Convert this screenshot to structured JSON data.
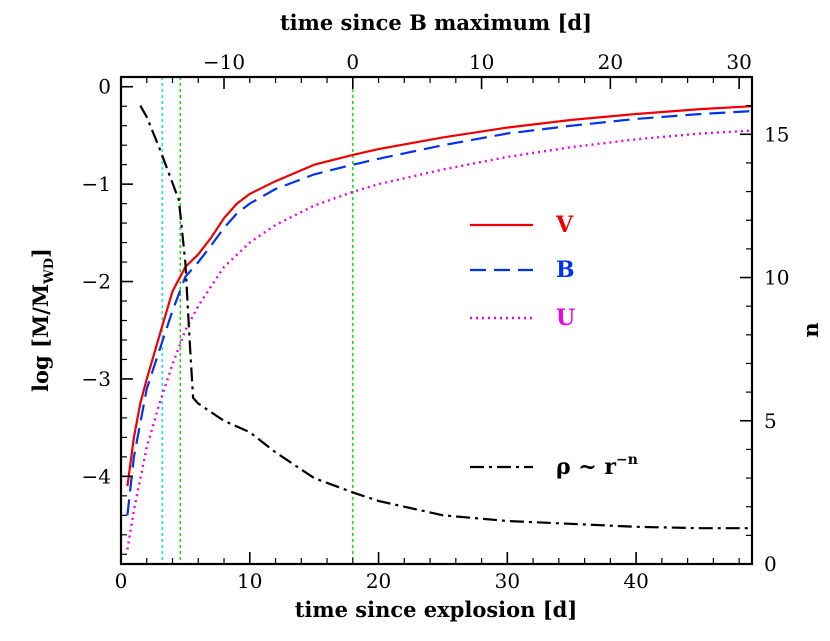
{
  "chart_data": {
    "type": "line",
    "title": "",
    "xlabel_bottom": "time since explosion [d]",
    "xlabel_top": "time since B maximum [d]",
    "ylabel_left_main": "log [M/M",
    "ylabel_left_sub": "WD",
    "ylabel_left_close": "]",
    "ylabel_right": "n",
    "xlim": [
      0,
      49
    ],
    "ylim": [
      -4.9,
      0.1
    ],
    "y2lim": [
      0,
      17
    ],
    "top_axis_offset": 18,
    "x_ticks": [
      0,
      10,
      20,
      30,
      40
    ],
    "x_tick_labels": [
      "0",
      "10",
      "20",
      "30",
      "40"
    ],
    "y_ticks": [
      -4,
      -3,
      -2,
      -1,
      0
    ],
    "y_tick_labels": [
      "−4",
      "−3",
      "−2",
      "−1",
      "0"
    ],
    "y2_ticks": [
      0,
      5,
      10,
      15
    ],
    "y2_tick_labels": [
      "0",
      "5",
      "10",
      "15"
    ],
    "top_ticks": [
      -10,
      0,
      10,
      20,
      30
    ],
    "top_tick_labels": [
      "−10",
      "0",
      "10",
      "20",
      "30"
    ],
    "vertical_lines": [
      {
        "x": 3.2,
        "color": "#00e5e5"
      },
      {
        "x": 4.6,
        "color": "#00dd00"
      },
      {
        "x": 18.0,
        "color": "#00dd00"
      }
    ],
    "series": [
      {
        "name": "V",
        "label": "V",
        "color": "#ee0000",
        "style": "solid",
        "axis": "left",
        "x": [
          0.5,
          1.0,
          1.5,
          2.0,
          3.0,
          4.0,
          5.0,
          6.0,
          7.0,
          8.0,
          9.0,
          10.0,
          12.0,
          15.0,
          18.0,
          20.0,
          25.0,
          30.0,
          35.0,
          40.0,
          45.0,
          49.0
        ],
        "y": [
          -4.1,
          -3.6,
          -3.25,
          -3.0,
          -2.55,
          -2.1,
          -1.85,
          -1.72,
          -1.55,
          -1.35,
          -1.2,
          -1.1,
          -0.97,
          -0.8,
          -0.7,
          -0.64,
          -0.52,
          -0.42,
          -0.34,
          -0.28,
          -0.23,
          -0.2
        ]
      },
      {
        "name": "B",
        "label": "B",
        "color": "#0033ee",
        "style": "dashed",
        "axis": "left",
        "x": [
          0.5,
          1.0,
          2.0,
          3.0,
          4.0,
          5.0,
          6.0,
          7.0,
          8.0,
          9.0,
          10.0,
          12.0,
          15.0,
          18.0,
          20.0,
          25.0,
          30.0,
          35.0,
          40.0,
          45.0,
          49.0
        ],
        "y": [
          -4.4,
          -3.8,
          -3.1,
          -2.7,
          -2.3,
          -1.95,
          -1.8,
          -1.63,
          -1.45,
          -1.3,
          -1.2,
          -1.05,
          -0.9,
          -0.8,
          -0.74,
          -0.6,
          -0.48,
          -0.4,
          -0.33,
          -0.28,
          -0.25
        ]
      },
      {
        "name": "U",
        "label": "U",
        "color": "#ee00ee",
        "style": "dotted",
        "axis": "left",
        "x": [
          0.5,
          1.0,
          2.0,
          3.0,
          4.0,
          5.0,
          6.0,
          7.0,
          8.0,
          10.0,
          12.0,
          15.0,
          18.0,
          20.0,
          25.0,
          30.0,
          35.0,
          40.0,
          45.0,
          49.0
        ],
        "y": [
          -4.75,
          -4.35,
          -3.7,
          -3.25,
          -2.85,
          -2.5,
          -2.25,
          -2.05,
          -1.85,
          -1.6,
          -1.42,
          -1.22,
          -1.08,
          -1.0,
          -0.85,
          -0.72,
          -0.62,
          -0.54,
          -0.48,
          -0.45
        ]
      },
      {
        "name": "rho",
        "label_base": "ρ ~ r",
        "label_exp": "−n",
        "color": "#000000",
        "style": "dashdot",
        "axis": "right",
        "x": [
          1.5,
          2.0,
          3.0,
          4.0,
          4.5,
          5.0,
          5.3,
          5.6,
          6.0,
          7.0,
          8.0,
          9.0,
          10.0,
          12.0,
          15.0,
          18.0,
          20.0,
          25.0,
          30.0,
          35.0,
          40.0,
          45.0,
          49.0
        ],
        "y": [
          16.0,
          15.6,
          14.5,
          13.3,
          12.7,
          10.5,
          8.0,
          5.8,
          5.6,
          5.3,
          5.0,
          4.8,
          4.6,
          3.9,
          3.0,
          2.5,
          2.2,
          1.7,
          1.5,
          1.4,
          1.3,
          1.25,
          1.25
        ]
      }
    ]
  }
}
